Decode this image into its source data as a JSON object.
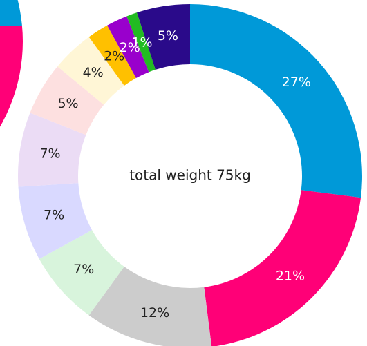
{
  "chart_data": {
    "type": "donut",
    "center_label": "total weight 75kg",
    "values": [
      27,
      21,
      12,
      7,
      7,
      7,
      5,
      4,
      2,
      2,
      1,
      5
    ],
    "value_labels": [
      "27%",
      "21%",
      "12%",
      "7%",
      "7%",
      "7%",
      "5%",
      "4%",
      "2%",
      "2%",
      "1%",
      "5%"
    ],
    "colors": [
      "#0099d8",
      "#ff0077",
      "#cccccc",
      "#d8f4dc",
      "#d9d9ff",
      "#ebdcf5",
      "#fde0e0",
      "#fff6d6",
      "#ffc000",
      "#9900cc",
      "#22bb22",
      "#2a0a8a"
    ]
  }
}
